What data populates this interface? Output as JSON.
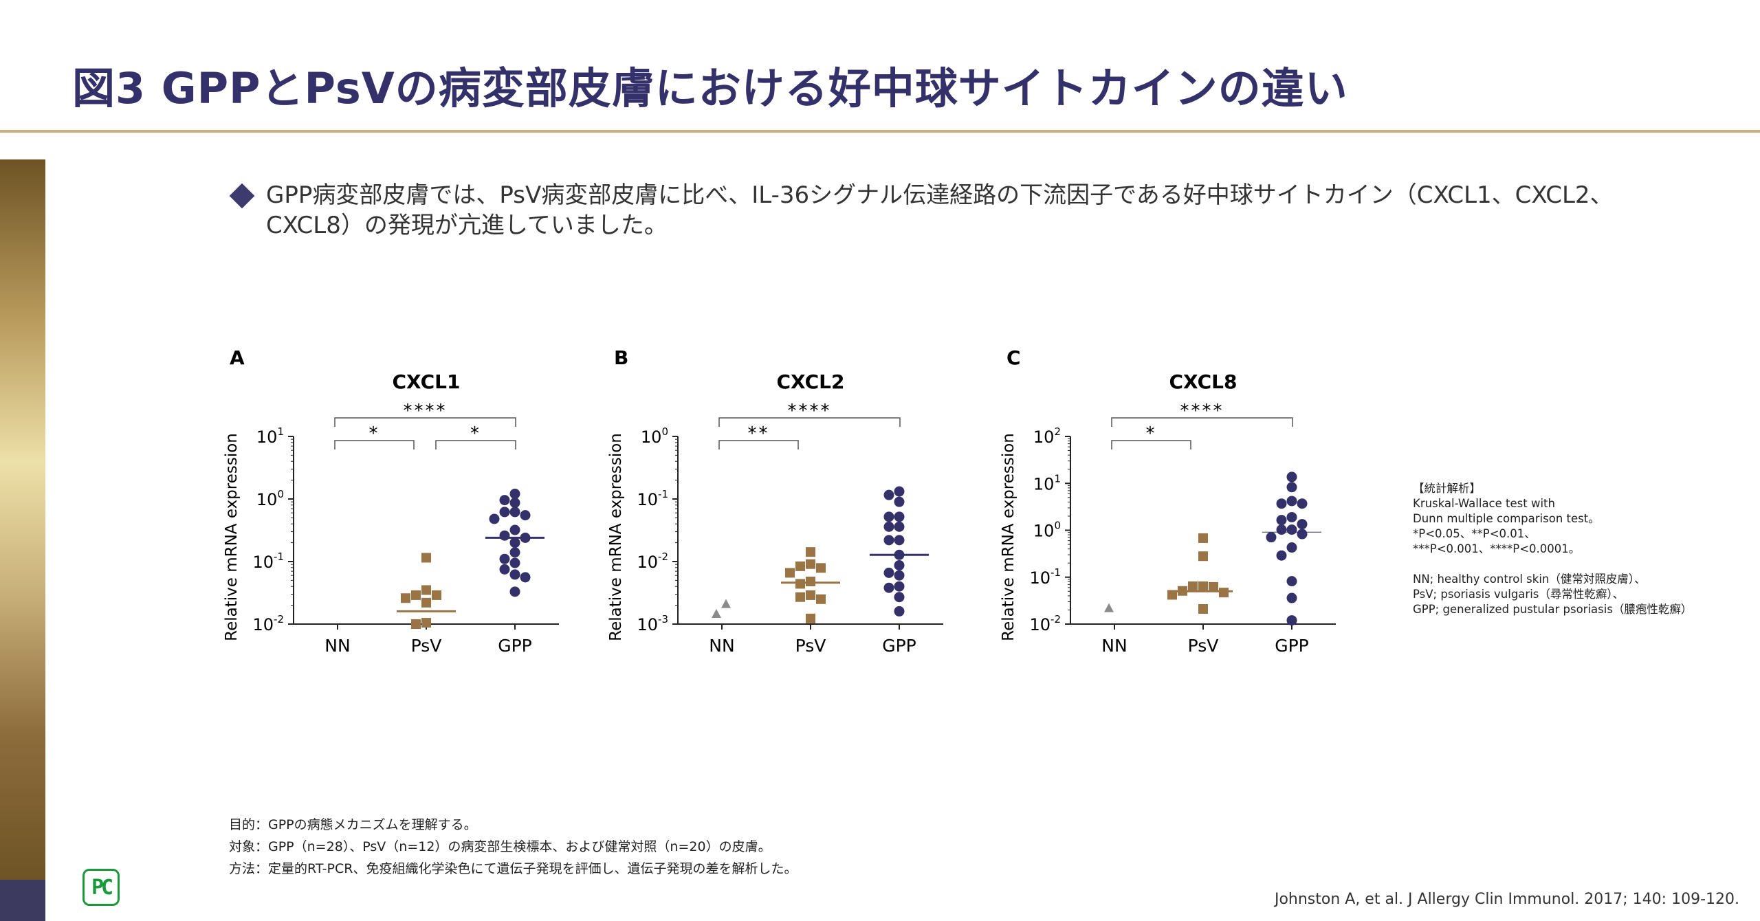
{
  "title": "図3 GPPとPsVの病変部皮膚における好中球サイトカインの違い",
  "bullet": "GPP病変部皮膚では、PsV病変部皮膚に比べ、IL-36シグナル伝達経路の下流因子である好中球サイトカイン（CXCL1、CXCL2、CXCL8）の発現が亢進していました。",
  "notes": {
    "heading": "【統計解析】",
    "lines": [
      "Kruskal-Wallace test with",
      "Dunn multiple comparison test。",
      "*P<0.05、**P<0.01、",
      "***P<0.001、****P<0.0001。",
      "",
      "NN; healthy control skin（健常対照皮膚）、",
      "PsV; psoriasis vulgaris（尋常性乾癬）、",
      "GPP; generalized pustular psoriasis（膿疱性乾癬）"
    ]
  },
  "footer": [
    "目的：GPPの病態メカニズムを理解する。",
    "対象：GPP（n=28）、PsV（n=12）の病変部生検標本、および健常対照（n=20）の皮膚。",
    "方法：定量的RT-PCR、免疫組織化学染色にて遺伝子発現を評価し、遺伝子発現の差を解析した。"
  ],
  "reference": "Johnston A, et al. J Allergy Clin Immunol. 2017; 140: 109-120.",
  "logo": "PC",
  "colors": {
    "title": "#34306a",
    "gpp": "#34306a",
    "psv": "#9a7445",
    "nn": "#8a8a8a",
    "rule": "#c6b084"
  },
  "chart_data": [
    {
      "type": "scatter",
      "panel": "A",
      "title": "CXCL1",
      "ylabel": "Relative mRNA expression",
      "yscale": "log",
      "ylim": [
        0.01,
        10
      ],
      "yticks": [
        "10^1",
        "10^0",
        "10^-1",
        "10^-2"
      ],
      "categories": [
        "NN",
        "PsV",
        "GPP"
      ],
      "series": [
        {
          "category": "NN",
          "marker": "triangle",
          "values": []
        },
        {
          "category": "PsV",
          "marker": "square",
          "median": 0.016,
          "values": [
            0.115,
            0.035,
            0.029,
            0.029,
            0.026,
            0.022,
            0.0105,
            0.01
          ]
        },
        {
          "category": "GPP",
          "marker": "circle",
          "median": 0.24,
          "values": [
            1.21,
            0.96,
            0.87,
            0.62,
            0.62,
            0.55,
            0.48,
            0.32,
            0.26,
            0.24,
            0.2,
            0.14,
            0.11,
            0.095,
            0.075,
            0.062,
            0.056,
            0.033
          ]
        }
      ],
      "comparisons": [
        {
          "from": "NN",
          "to": "GPP",
          "label": "****",
          "level": 2
        },
        {
          "from": "NN",
          "to": "PsV",
          "label": "*",
          "level": 1
        },
        {
          "from": "PsV",
          "to": "GPP",
          "label": "*",
          "level": 1
        }
      ]
    },
    {
      "type": "scatter",
      "panel": "B",
      "title": "CXCL2",
      "ylabel": "Relative mRNA expression",
      "yscale": "log",
      "ylim": [
        0.001,
        1
      ],
      "yticks": [
        "10^0",
        "10^-1",
        "10^-2",
        "10^-3"
      ],
      "categories": [
        "NN",
        "PsV",
        "GPP"
      ],
      "series": [
        {
          "category": "NN",
          "marker": "triangle",
          "values": [
            0.00146,
            0.0021
          ]
        },
        {
          "category": "PsV",
          "marker": "square",
          "median": 0.0046,
          "values": [
            0.0142,
            0.0091,
            0.0084,
            0.0079,
            0.0066,
            0.0048,
            0.0044,
            0.0029,
            0.0027,
            0.0025,
            0.00123
          ]
        },
        {
          "category": "GPP",
          "marker": "circle",
          "median": 0.0128,
          "values": [
            0.132,
            0.116,
            0.09,
            0.052,
            0.052,
            0.036,
            0.036,
            0.022,
            0.022,
            0.0128,
            0.0087,
            0.0066,
            0.006,
            0.004,
            0.0038,
            0.0027,
            0.0016
          ]
        }
      ],
      "comparisons": [
        {
          "from": "NN",
          "to": "GPP",
          "label": "****",
          "level": 2
        },
        {
          "from": "NN",
          "to": "PsV",
          "label": "**",
          "level": 1
        }
      ]
    },
    {
      "type": "scatter",
      "panel": "C",
      "title": "CXCL8",
      "ylabel": "Relative mRNA expression",
      "yscale": "log",
      "ylim": [
        0.01,
        100
      ],
      "yticks": [
        "10^2",
        "10^1",
        "10^0",
        "10^-1",
        "10^-2"
      ],
      "categories": [
        "NN",
        "PsV",
        "GPP"
      ],
      "series": [
        {
          "category": "NN",
          "marker": "triangle",
          "values": [
            0.022
          ]
        },
        {
          "category": "PsV",
          "marker": "square",
          "median": 0.05,
          "values": [
            0.68,
            0.28,
            0.064,
            0.064,
            0.062,
            0.051,
            0.047,
            0.042,
            0.021
          ]
        },
        {
          "category": "GPP",
          "marker": "circle",
          "median": 0.91,
          "values": [
            13.7,
            8.3,
            4.2,
            3.7,
            3.7,
            1.9,
            1.65,
            1.35,
            1.03,
            1.03,
            0.83,
            0.71,
            0.43,
            0.29,
            0.082,
            0.036,
            0.012
          ]
        }
      ],
      "comparisons": [
        {
          "from": "NN",
          "to": "GPP",
          "label": "****",
          "level": 2
        },
        {
          "from": "NN",
          "to": "PsV",
          "label": "*",
          "level": 1
        }
      ]
    }
  ]
}
